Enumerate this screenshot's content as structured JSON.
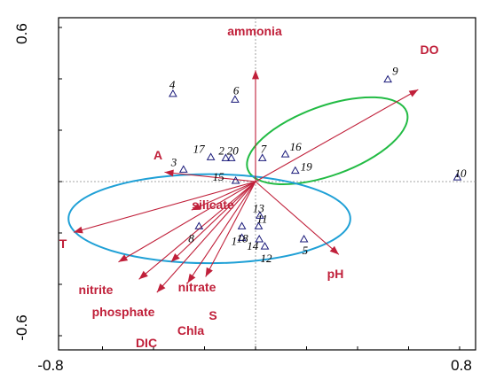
{
  "chart_data": {
    "type": "scatter",
    "title": "",
    "xlabel": "",
    "ylabel": "",
    "xlim": [
      -0.8,
      0.8
    ],
    "ylim": [
      -0.6,
      0.6
    ],
    "x_tick_labels": [
      "-0.8",
      "0.8"
    ],
    "y_tick_labels": [
      "0.6",
      "-0.6"
    ],
    "colors": {
      "vector": "#c0203a",
      "site": "#1a1a7a",
      "green_ellipse": "#22bb44",
      "blue_ellipse": "#1fa0d6",
      "frame": "#000000",
      "axis": "#888888"
    },
    "vectors": [
      {
        "name": "ammonia",
        "x": 0.0,
        "y": 0.45
      },
      {
        "name": "DO",
        "x": 0.635,
        "y": 0.372
      },
      {
        "name": "A",
        "x": -0.355,
        "y": 0.038
      },
      {
        "name": "silicate",
        "x": -0.25,
        "y": -0.115
      },
      {
        "name": "T",
        "x": -0.71,
        "y": -0.205
      },
      {
        "name": "pH",
        "x": 0.325,
        "y": -0.295
      },
      {
        "name": "nitrite",
        "x": -0.535,
        "y": -0.325
      },
      {
        "name": "nitrate",
        "x": -0.33,
        "y": -0.325
      },
      {
        "name": "phosphate",
        "x": -0.455,
        "y": -0.395
      },
      {
        "name": "S",
        "x": -0.195,
        "y": -0.385
      },
      {
        "name": "Chla",
        "x": -0.265,
        "y": -0.41
      },
      {
        "name": "DIC",
        "x": -0.385,
        "y": -0.448
      }
    ],
    "sites": [
      {
        "label": "1",
        "x": -0.11,
        "y": -0.195
      },
      {
        "label": "2",
        "x": -0.24,
        "y": 0.082
      },
      {
        "label": "3",
        "x": -0.58,
        "y": 0.042
      },
      {
        "label": "4",
        "x": -0.665,
        "y": 0.305
      },
      {
        "label": "5",
        "x": 0.39,
        "y": -0.2
      },
      {
        "label": "6",
        "x": -0.165,
        "y": 0.285
      },
      {
        "label": "7",
        "x": 0.055,
        "y": 0.082
      },
      {
        "label": "8",
        "x": -0.455,
        "y": -0.155
      },
      {
        "label": "9",
        "x": 1.065,
        "y": 0.355
      },
      {
        "label": "10",
        "x": 1.625,
        "y": 0.015
      },
      {
        "label": "11",
        "x": 0.025,
        "y": -0.155
      },
      {
        "label": "12",
        "x": 0.075,
        "y": -0.225
      },
      {
        "label": "13",
        "x": 0.035,
        "y": -0.118
      },
      {
        "label": "14",
        "x": 0.03,
        "y": -0.2
      },
      {
        "label": "15",
        "x": -0.16,
        "y": 0.003
      },
      {
        "label": "16",
        "x": 0.24,
        "y": 0.095
      },
      {
        "label": "17",
        "x": -0.36,
        "y": 0.085
      },
      {
        "label": "18",
        "x": -0.11,
        "y": -0.155
      },
      {
        "label": "19",
        "x": 0.32,
        "y": 0.038
      },
      {
        "label": "20",
        "x": -0.195,
        "y": 0.082
      }
    ],
    "ellipses": [
      {
        "name": "green",
        "cx": 0.28,
        "cy": 0.165,
        "rx": 0.33,
        "ry": 0.14,
        "rotation_deg": 20
      },
      {
        "name": "blue",
        "cx": -0.18,
        "cy": -0.15,
        "rx": 0.55,
        "ry": 0.18,
        "rotation_deg": 0
      }
    ]
  }
}
